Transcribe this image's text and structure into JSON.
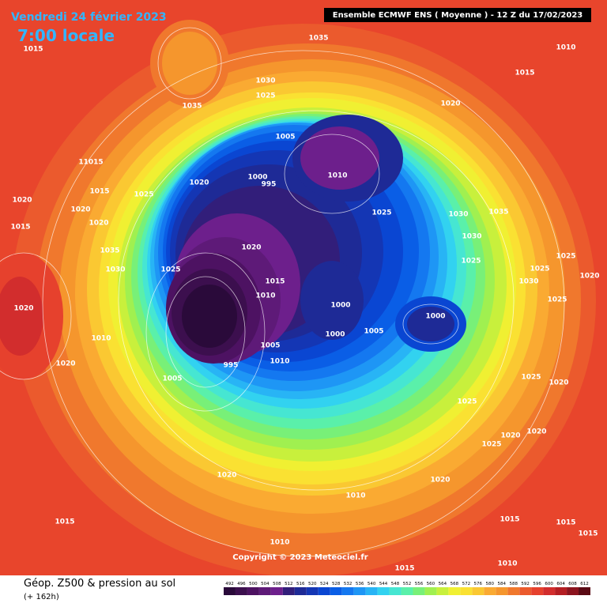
{
  "header": {
    "date": "Vendredi 24 février 2023",
    "time": "7:00 locale",
    "model": "Ensemble ECMWF ENS  ( Moyenne )  -  12 Z du 17/02/2023"
  },
  "copyright": "Copyright © 2023 Meteociel.fr",
  "footer": {
    "title": "Géop. Z500 & pression au sol",
    "lead": "(+ 162h)"
  },
  "legend": {
    "values": [
      492,
      496,
      500,
      504,
      508,
      512,
      516,
      520,
      524,
      528,
      532,
      536,
      540,
      544,
      548,
      552,
      556,
      560,
      564,
      568,
      572,
      576,
      580,
      584,
      588,
      592,
      596,
      600,
      604,
      608,
      612
    ],
    "colors": [
      "#2a0a3a",
      "#3c0f4e",
      "#4d1262",
      "#5e1a78",
      "#6d1f8c",
      "#321e7a",
      "#1e2a96",
      "#1436b4",
      "#0a46d2",
      "#0a5ee6",
      "#1478f0",
      "#1e96f5",
      "#28b4f5",
      "#32d2f0",
      "#46e6d2",
      "#5af0aa",
      "#78f078",
      "#a0f050",
      "#c8f03c",
      "#f0f032",
      "#fae132",
      "#fac832",
      "#faaa32",
      "#f5962d",
      "#f0782d",
      "#eb5a2d",
      "#e6412d",
      "#d22d2d",
      "#b41e23",
      "#8c141e",
      "#5a0a14"
    ]
  },
  "isobars": [
    "1035",
    "1015",
    "1010",
    "1015",
    "1030",
    "1035",
    "1025",
    "1020",
    "1005",
    "11015",
    "1000",
    "995",
    "1010",
    "1020",
    "1015",
    "1025",
    "1020",
    "1020",
    "1025",
    "1030",
    "1035",
    "1015",
    "1020",
    "1030",
    "1035",
    "1020",
    "1025",
    "1030",
    "1025",
    "1015",
    "1010",
    "1000",
    "1020",
    "1000",
    "1005",
    "1000",
    "1010",
    "1005",
    "1010",
    "995",
    "1005",
    "1020",
    "1025",
    "1020",
    "1020",
    "1025",
    "1020",
    "1020",
    "1010",
    "1015",
    "1015",
    "1015",
    "1010",
    "1015",
    "1010",
    "1015",
    "1025",
    "1020",
    "1025",
    "1025",
    "1030",
    "1020",
    "1025"
  ]
}
